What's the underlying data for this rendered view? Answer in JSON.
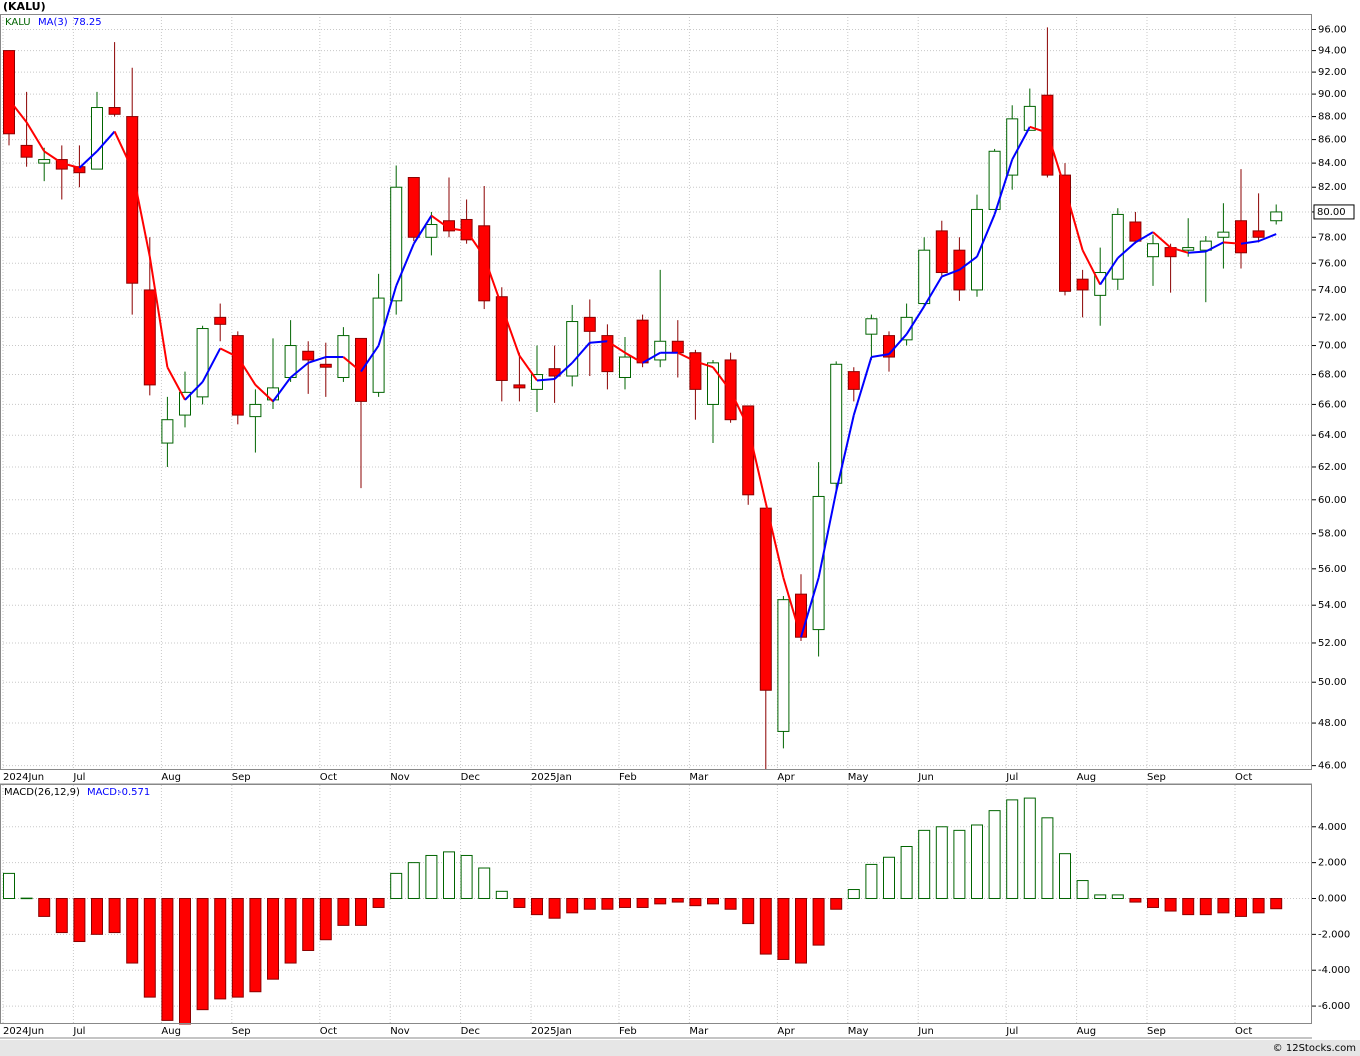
{
  "chart_data": [
    {
      "type": "candlestick",
      "title": "(KALU)",
      "symbol": "KALU",
      "log_scale": true,
      "grid": true,
      "up_color": "#006400",
      "down_color": "#ff0000",
      "up_ma_color": "#0000ff",
      "down_ma_color": "#ff0000",
      "categories": [
        "2024Jun",
        null,
        null,
        null,
        "Jul",
        null,
        null,
        null,
        null,
        "Aug",
        null,
        null,
        null,
        "Sep",
        null,
        null,
        null,
        null,
        "Oct",
        null,
        null,
        null,
        "Nov",
        null,
        null,
        null,
        "Dec",
        null,
        null,
        null,
        "2025Jan",
        null,
        null,
        null,
        null,
        "Feb",
        null,
        null,
        null,
        "Mar",
        null,
        null,
        null,
        null,
        "Apr",
        null,
        null,
        null,
        "May",
        null,
        null,
        null,
        "Jun",
        null,
        null,
        null,
        null,
        "Jul",
        null,
        null,
        null,
        "Aug",
        null,
        null,
        null,
        "Sep",
        null,
        null,
        null,
        null,
        "Oct",
        null,
        null
      ],
      "open": [
        94,
        85.5,
        84,
        84.3,
        83.7,
        83.5,
        88.8,
        88,
        74,
        63.5,
        65.3,
        66.5,
        72,
        70.7,
        65.2,
        66.3,
        67.8,
        69.6,
        68.7,
        67.8,
        70.5,
        66.8,
        73.2,
        82.8,
        78,
        79.3,
        79.4,
        78.9,
        73.5,
        67.3,
        67,
        68.4,
        67.9,
        72,
        70.7,
        67.8,
        71.8,
        69,
        70.3,
        69.5,
        66,
        69,
        65.9,
        59.5,
        47.6,
        54.6,
        52.7,
        61,
        68.2,
        70.8,
        70.7,
        70.4,
        73,
        78.5,
        77,
        74,
        80.2,
        83,
        86.8,
        89.9,
        83,
        74.8,
        73.6,
        74.8,
        79.2,
        76.5,
        77.2,
        77,
        77,
        78,
        79.3,
        78.5,
        79.3
      ],
      "high": [
        94,
        90.2,
        85.3,
        85.5,
        85.5,
        90.2,
        94.8,
        92.4,
        78,
        66.5,
        68.2,
        71.4,
        73,
        71,
        67,
        70.5,
        71.8,
        70.3,
        70.2,
        71.3,
        70.5,
        75.2,
        83.8,
        82.8,
        80,
        82.8,
        81,
        82.1,
        74.2,
        69.5,
        70,
        70,
        72.9,
        73.3,
        71.5,
        70.6,
        72.2,
        75.5,
        71.8,
        69.7,
        69,
        69.5,
        65.9,
        59.5,
        54.5,
        55.7,
        62.3,
        68.9,
        68.5,
        72.2,
        71,
        73,
        78,
        79.3,
        78,
        81.4,
        85.2,
        89,
        90.5,
        96.2,
        84,
        75.5,
        77.2,
        80.3,
        80,
        78.2,
        77.5,
        79.5,
        78.1,
        80.7,
        83.5,
        81.5,
        80.6
      ],
      "low": [
        85.5,
        83.7,
        82.5,
        81,
        82,
        83.5,
        88,
        72.2,
        66.6,
        62,
        64.5,
        66,
        70.3,
        64.7,
        62.9,
        65.7,
        67.5,
        66.7,
        66.5,
        67.5,
        60.7,
        66.5,
        72.2,
        77.7,
        76.6,
        78,
        77.5,
        72.6,
        66.2,
        66.2,
        65.5,
        66.1,
        67.2,
        67.9,
        67,
        67,
        68.5,
        68.5,
        67.8,
        65,
        63.5,
        64.8,
        59.7,
        45.8,
        46.8,
        52.1,
        51.3,
        60.4,
        66.2,
        69,
        68.2,
        70,
        72.8,
        75,
        73.2,
        73.5,
        80.2,
        81.8,
        86.8,
        82.8,
        73.6,
        72,
        71.4,
        74,
        77.5,
        74.3,
        73.8,
        76.5,
        73.1,
        75.6,
        75.6,
        77.6,
        79
      ],
      "close": [
        86.5,
        84.5,
        84.3,
        83.5,
        83.2,
        88.8,
        88.2,
        74.5,
        67.3,
        65,
        66.8,
        71.2,
        71.5,
        65.3,
        66,
        67.1,
        70,
        69,
        68.5,
        70.7,
        66.2,
        73.4,
        82,
        78,
        79,
        78.5,
        77.8,
        73.2,
        67.6,
        67.1,
        68,
        67.9,
        71.7,
        71,
        68.2,
        69.2,
        68.8,
        70.3,
        69.5,
        67,
        68.8,
        65,
        60.3,
        49.6,
        54.3,
        52.3,
        60.2,
        68.7,
        67,
        71.9,
        69.2,
        72,
        77,
        75.3,
        74,
        80.2,
        85,
        87.8,
        88.9,
        83,
        73.9,
        74,
        75.3,
        79.8,
        77.7,
        77.5,
        76.5,
        77.2,
        77.7,
        78.4,
        76.8,
        78,
        80
      ],
      "last_label": "80.00",
      "ma": {
        "name": "MA(3)",
        "values": [
          89.5,
          87.5,
          85,
          84,
          83.6,
          85,
          86.7,
          83.5,
          76.5,
          68.5,
          66.3,
          67.5,
          69.8,
          69.2,
          67.3,
          66.2,
          67.8,
          68.8,
          69.2,
          69.2,
          68.2,
          70,
          74.3,
          77.5,
          79.7,
          78.7,
          78.5,
          76.5,
          72.8,
          69.3,
          67.6,
          67.7,
          68.8,
          70.2,
          70.3,
          69.5,
          68.8,
          69.5,
          69.5,
          68.9,
          68.5,
          66.9,
          64.5,
          59.8,
          55.5,
          52.3,
          55.5,
          60.5,
          65.3,
          69.2,
          69.4,
          70.8,
          72.8,
          75,
          75.5,
          76.5,
          79.8,
          84.3,
          87.1,
          86.6,
          81.9,
          77,
          74.4,
          76.4,
          77.6,
          78.4,
          77.2,
          76.8,
          76.9,
          77.6,
          77.5,
          77.7,
          78.25
        ]
      },
      "ylim": [
        45.8,
        97.5
      ],
      "yticks": [
        {
          "value": 46,
          "label": "46.00"
        },
        {
          "value": 48,
          "label": "48.00"
        },
        {
          "value": 50,
          "label": "50.00"
        },
        {
          "value": 52,
          "label": "52.00"
        },
        {
          "value": 54,
          "label": "54.00"
        },
        {
          "value": 56,
          "label": "56.00"
        },
        {
          "value": 58,
          "label": "58.00"
        },
        {
          "value": 60,
          "label": "60.00"
        },
        {
          "value": 62,
          "label": "62.00"
        },
        {
          "value": 64,
          "label": "64.00"
        },
        {
          "value": 66,
          "label": "66.00"
        },
        {
          "value": 68,
          "label": "68.00"
        },
        {
          "value": 70,
          "label": "70.00"
        },
        {
          "value": 72,
          "label": "72.00"
        },
        {
          "value": 74,
          "label": "74.00"
        },
        {
          "value": 76,
          "label": "76.00"
        },
        {
          "value": 78,
          "label": "78.00"
        },
        {
          "value": 80,
          "label": "80.00"
        },
        {
          "value": 82,
          "label": "82.00"
        },
        {
          "value": 84,
          "label": "84.00"
        },
        {
          "value": 86,
          "label": "86.00"
        },
        {
          "value": 88,
          "label": "88.00"
        },
        {
          "value": 90,
          "label": "90.00"
        },
        {
          "value": 92,
          "label": "92.00"
        },
        {
          "value": 94,
          "label": "94.00"
        },
        {
          "value": 96,
          "label": "96.00"
        }
      ]
    },
    {
      "type": "histogram_macd",
      "title": "MACD(26,12,9)",
      "value_name": "MACD:",
      "grid": true,
      "up_color": "#006400",
      "down_color": "#ff0000",
      "values": [
        1.4,
        0.02,
        -1,
        -1.9,
        -2.4,
        -2,
        -1.9,
        -3.6,
        -5.5,
        -6.8,
        -7,
        -6.2,
        -5.6,
        -5.5,
        -5.2,
        -4.5,
        -3.6,
        -2.9,
        -2.3,
        -1.5,
        -1.5,
        -0.5,
        1.4,
        2,
        2.4,
        2.6,
        2.4,
        1.7,
        0.4,
        -0.5,
        -0.9,
        -1.1,
        -0.8,
        -0.6,
        -0.6,
        -0.5,
        -0.5,
        -0.3,
        -0.2,
        -0.4,
        -0.3,
        -0.6,
        -1.4,
        -3.1,
        -3.4,
        -3.6,
        -2.6,
        -0.6,
        0.5,
        1.9,
        2.3,
        2.9,
        3.8,
        4,
        3.8,
        4.1,
        4.9,
        5.5,
        5.6,
        4.5,
        2.5,
        1,
        0.2,
        0.2,
        -0.2,
        -0.5,
        -0.7,
        -0.9,
        -0.9,
        -0.8,
        -1,
        -0.8,
        -0.571
      ],
      "ylim": [
        -7.0,
        6.33
      ],
      "yticks": [
        {
          "value": -6,
          "label": "-6.000"
        },
        {
          "value": -4,
          "label": "-4.000"
        },
        {
          "value": -2,
          "label": "-2.000"
        },
        {
          "value": 0,
          "label": "0.000"
        },
        {
          "value": 2,
          "label": "2.000"
        },
        {
          "value": 4,
          "label": "4.000"
        }
      ]
    }
  ],
  "footer": "© 12Stocks.com"
}
